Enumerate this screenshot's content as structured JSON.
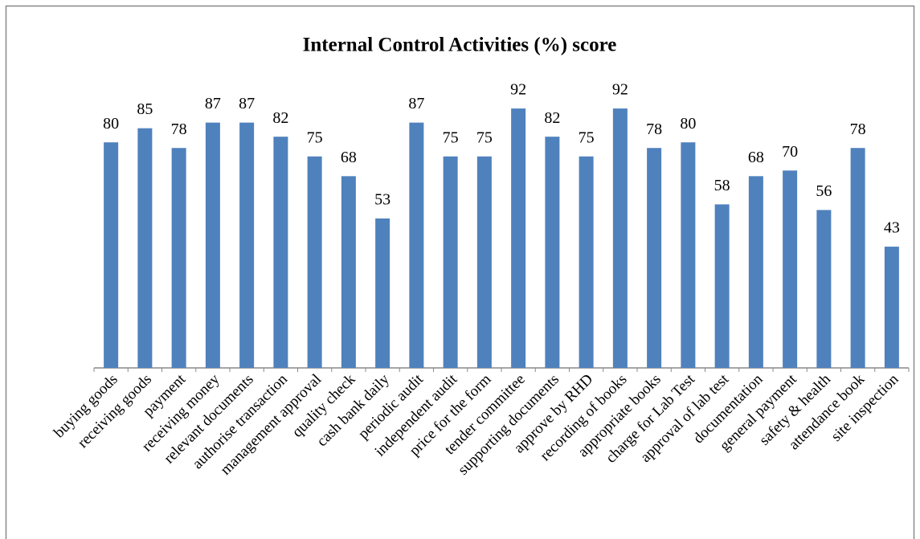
{
  "chart_data": {
    "type": "bar",
    "title": "Internal Control Activities (%) score",
    "categories": [
      "buying goods",
      "receiving goods",
      "payment",
      "receiving money",
      "relevant documents",
      "authorise transaction",
      "management approval",
      "quality check",
      "cash bank daily",
      "periodic audit",
      "independent audit",
      "price for the form",
      "tender committee",
      "supporting documents",
      "approve by RHD",
      "recording of books",
      "appropriate books",
      "charge for Lab Test",
      "approval of lab test",
      "documentation",
      "general payment",
      "safety & health",
      "attendance book",
      "site inspection"
    ],
    "values": [
      80,
      85,
      78,
      87,
      87,
      82,
      75,
      68,
      53,
      87,
      75,
      75,
      92,
      82,
      75,
      92,
      78,
      80,
      58,
      68,
      70,
      56,
      78,
      43
    ],
    "color": "#4f81bd",
    "ylim": [
      0,
      100
    ],
    "grid": false
  }
}
